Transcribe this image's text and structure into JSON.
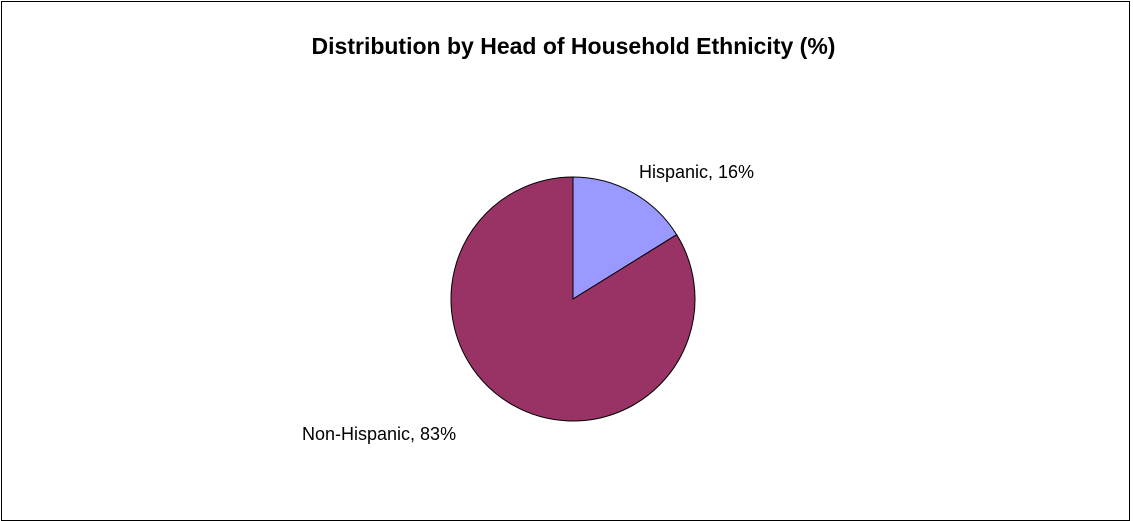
{
  "chart_data": {
    "type": "pie",
    "title": "Distribution by Head of Household Ethnicity (%)",
    "slices": [
      {
        "label": "Hispanic, 16%",
        "value": 16,
        "color": "#9999FF"
      },
      {
        "label": "Non-Hispanic, 83%",
        "value": 83,
        "color": "#993366"
      }
    ],
    "start_angle_deg": 0,
    "direction": "clockwise",
    "legend": "none",
    "data_labels": "outside"
  }
}
